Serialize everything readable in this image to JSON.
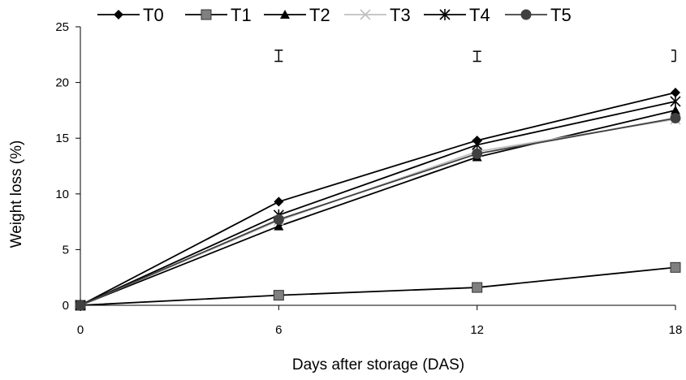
{
  "chart_data": {
    "type": "line",
    "title": "",
    "xlabel": "Days after storage (DAS)",
    "ylabel": "Weight loss (%)",
    "x": [
      0,
      6,
      12,
      18
    ],
    "x_ticks": [
      "0",
      "6",
      "12",
      "18"
    ],
    "y_ticks": [
      "0",
      "5",
      "10",
      "15",
      "20",
      "25"
    ],
    "ylim": [
      0,
      25
    ],
    "grid": false,
    "legend_position": "top",
    "series": [
      {
        "name": "T0",
        "values": [
          0,
          9.3,
          14.8,
          19.1
        ],
        "marker": "diamond",
        "color": "#000000",
        "marker_color": "#000000"
      },
      {
        "name": "T1",
        "values": [
          0,
          0.9,
          1.6,
          3.4
        ],
        "marker": "square",
        "color": "#000000",
        "marker_color": "#808080"
      },
      {
        "name": "T2",
        "values": [
          0,
          7.1,
          13.3,
          17.5
        ],
        "marker": "triangle",
        "color": "#000000",
        "marker_color": "#000000"
      },
      {
        "name": "T3",
        "values": [
          0,
          7.6,
          13.8,
          16.7
        ],
        "marker": "x",
        "color": "#bfbfbf",
        "marker_color": "#bfbfbf"
      },
      {
        "name": "T4",
        "values": [
          0,
          8.1,
          14.4,
          18.3
        ],
        "marker": "star",
        "color": "#000000",
        "marker_color": "#000000"
      },
      {
        "name": "T5",
        "values": [
          0,
          7.7,
          13.6,
          16.8
        ],
        "marker": "circle",
        "color": "#404040",
        "marker_color": "#404040"
      }
    ],
    "error_bars": [
      {
        "x": 6,
        "low": 21.9,
        "high": 22.9
      },
      {
        "x": 12,
        "low": 21.9,
        "high": 22.8
      },
      {
        "x": 18,
        "low": 21.9,
        "high": 22.9
      }
    ]
  }
}
